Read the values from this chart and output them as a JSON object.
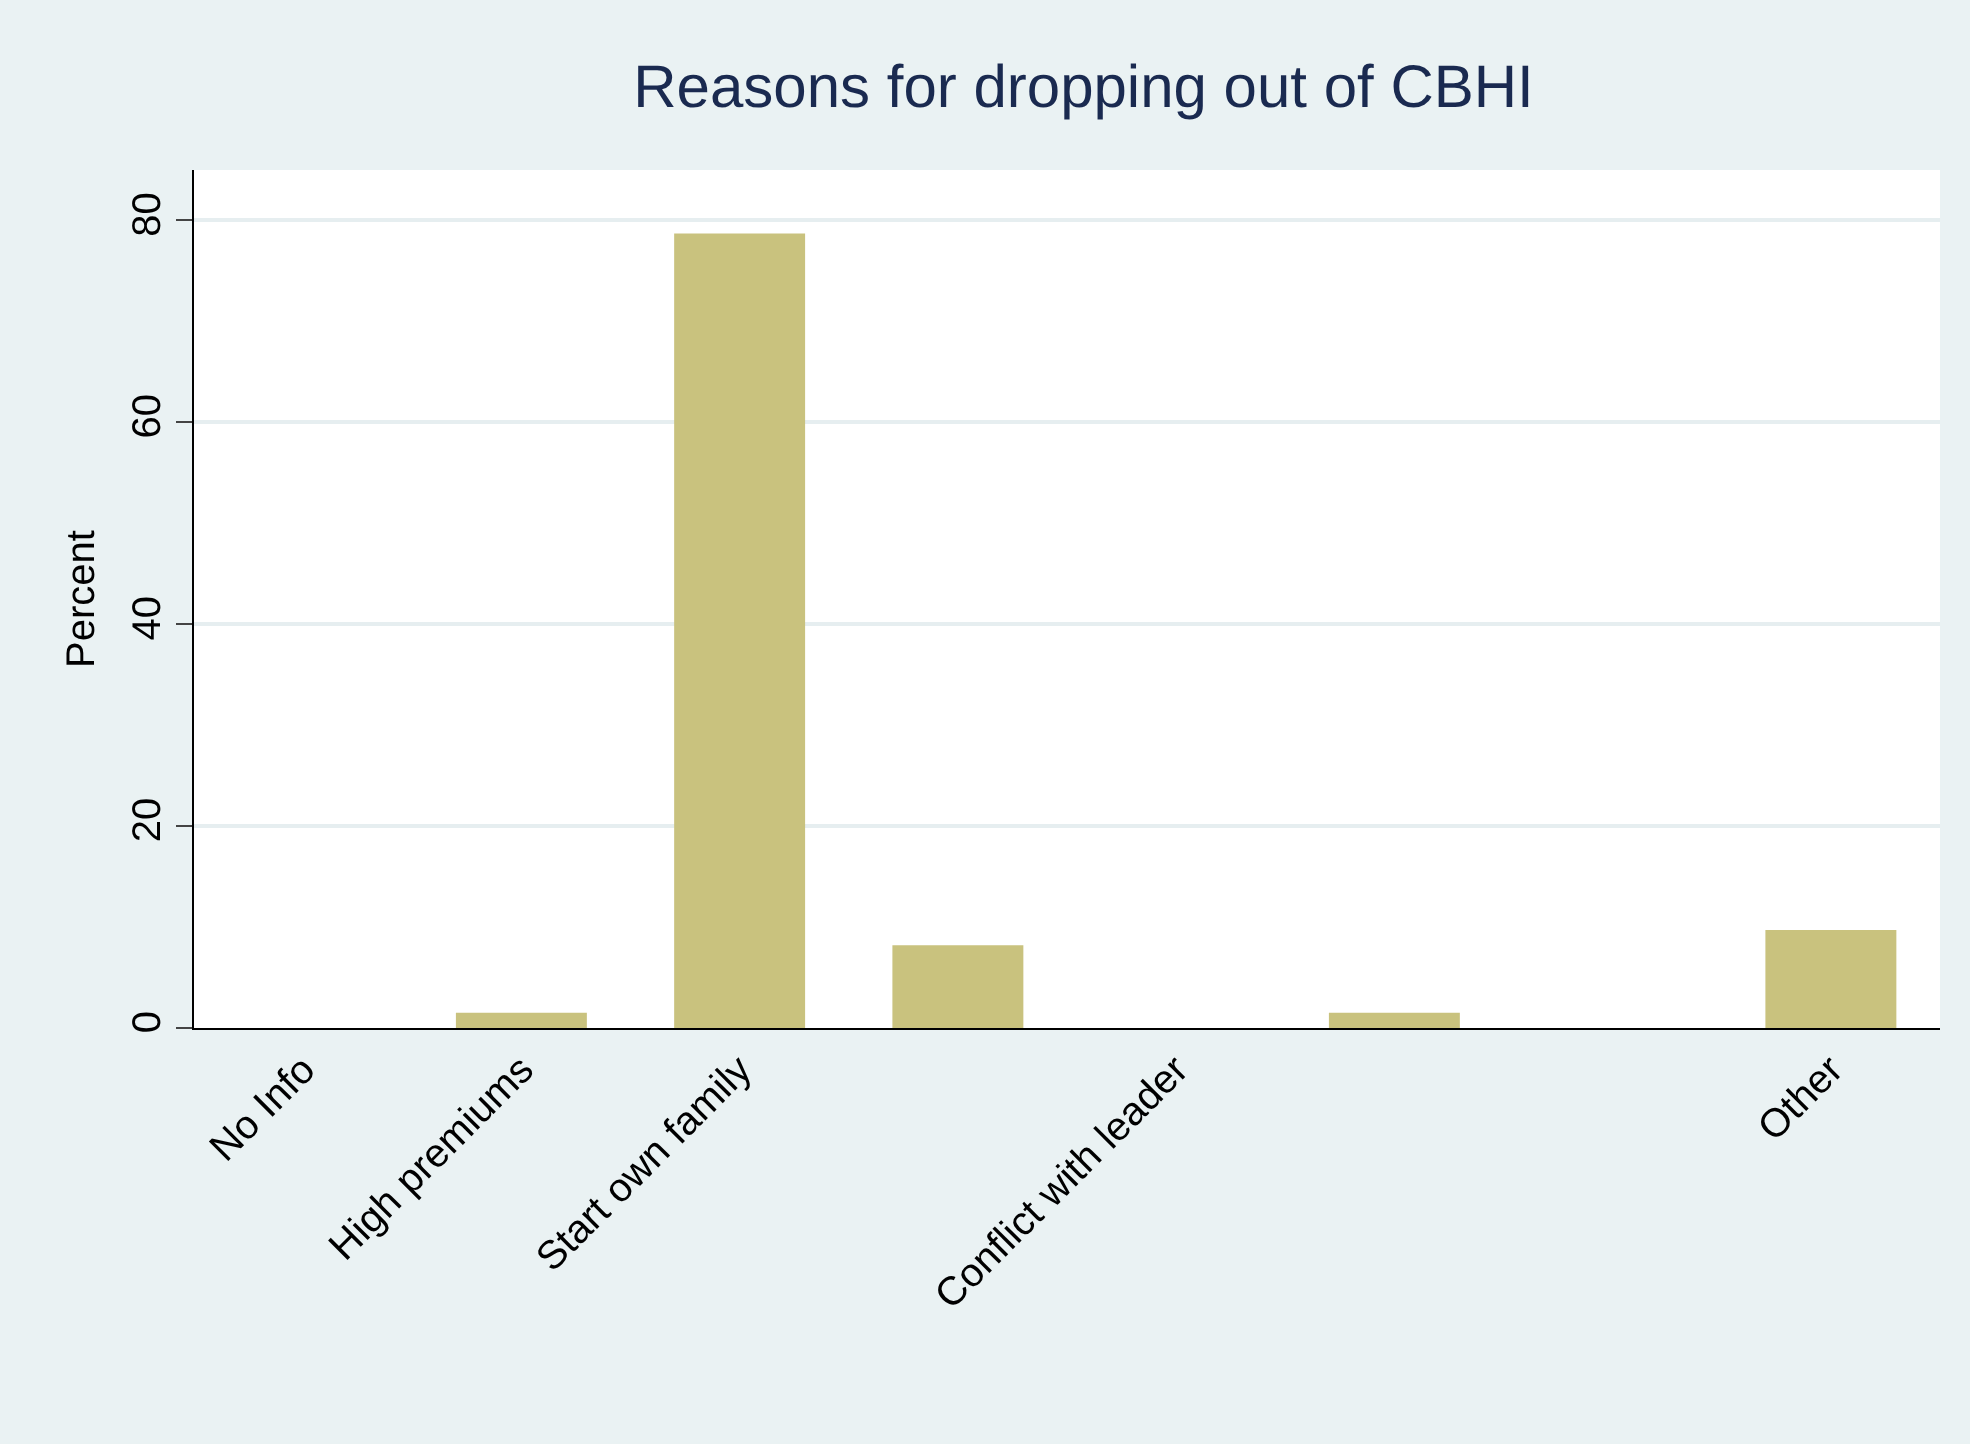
{
  "chart_data": {
    "type": "bar",
    "title": "Reasons for dropping out of CBHI",
    "ylabel": "Percent",
    "categories": [
      "No Info",
      "High premiums",
      "Start own family",
      null,
      "Conflict with leader",
      null,
      null,
      "Other"
    ],
    "values": [
      0,
      1.5,
      78.7,
      8.2,
      0,
      1.5,
      0,
      9.7
    ],
    "color": "#c9c27e",
    "ylim": [
      0,
      85
    ],
    "yticks": [
      0,
      20,
      40,
      60,
      80
    ],
    "grid": "y"
  }
}
